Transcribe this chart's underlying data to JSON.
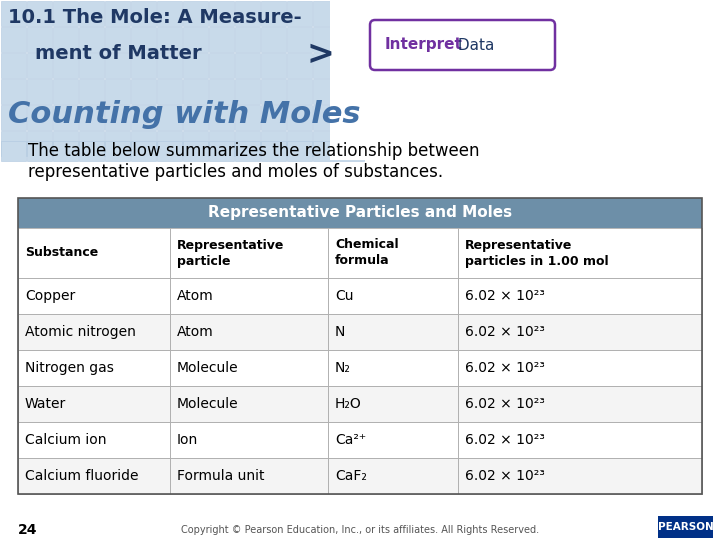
{
  "header_title_line1": "10.1 The Mole: A Measure-",
  "header_title_line2": "ment of Matter",
  "badge_interpret": "Interpret",
  "badge_data": " Data",
  "arrow_char": ">",
  "section_title": "Counting with Moles",
  "body_text_line1": "The table below summarizes the relationship between",
  "body_text_line2": "representative particles and moles of substances.",
  "table_header": "Representative Particles and Moles",
  "col_headers": [
    "Substance",
    "Representative\nparticle",
    "Chemical\nformula",
    "Representative\nparticles in 1.00 mol"
  ],
  "rows": [
    [
      "Copper",
      "Atom",
      "Cu",
      "6.02 × 10²³"
    ],
    [
      "Atomic nitrogen",
      "Atom",
      "N",
      "6.02 × 10²³"
    ],
    [
      "Nitrogen gas",
      "Molecule",
      "N₂",
      "6.02 × 10²³"
    ],
    [
      "Water",
      "Molecule",
      "H₂O",
      "6.02 × 10²³"
    ],
    [
      "Calcium ion",
      "Ion",
      "Ca²⁺",
      "6.02 × 10²³"
    ],
    [
      "Calcium fluoride",
      "Formula unit",
      "CaF₂",
      "6.02 × 10²³"
    ]
  ],
  "bg_color": "#ffffff",
  "grid_color": "#c8daea",
  "grid_border": "#b0c8e0",
  "table_header_bg": "#6d8fa8",
  "table_col_header_bg": "#ffffff",
  "table_row_white": "#ffffff",
  "table_row_gray": "#f0f0f0",
  "section_title_color": "#4472a8",
  "header_text_color": "#1f3864",
  "body_text_color": "#000000",
  "table_header_text": "#ffffff",
  "badge_bg": "#ffffff",
  "badge_border": "#7030a0",
  "badge_interpret_color": "#7030a0",
  "badge_data_color": "#1f3864",
  "arrow_color": "#1f3864",
  "footer_text": "Copyright © Pearson Education, Inc., or its affiliates. All Rights Reserved.",
  "page_num": "24",
  "pearson_color": "#003087",
  "pearson_red": "#c00000",
  "table_border_color": "#555555",
  "table_line_color": "#aaaaaa"
}
